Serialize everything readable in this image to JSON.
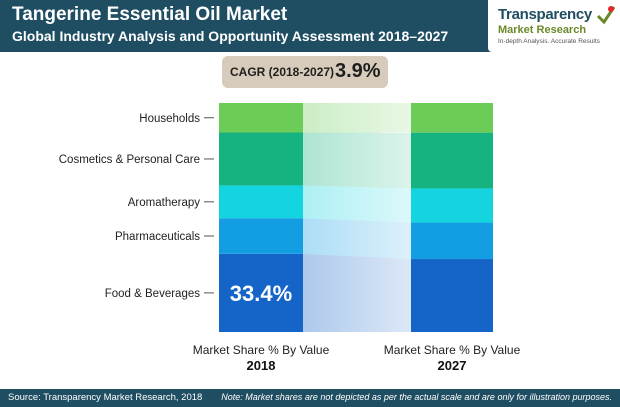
{
  "header": {
    "title": "Tangerine Essential Oil Market",
    "subtitle": "Global  Industry Analysis and Opportunity Assessment 2018–2027"
  },
  "logo": {
    "main": "Transparency",
    "sub": "Market Research",
    "tagline": "In-depth Analysis. Accurate Results"
  },
  "cagr": {
    "label": "CAGR (2018-2027)",
    "value": "3.9%"
  },
  "chart_data": {
    "type": "bar",
    "stacked": true,
    "categories": [
      "2018",
      "2027"
    ],
    "x_labels": [
      {
        "line1": "Market Share % By Value",
        "line2": "2018"
      },
      {
        "line1": "Market Share % By Value",
        "line2": "2027"
      }
    ],
    "series": [
      {
        "name": "Food & Beverages",
        "values": [
          33.4,
          31.0
        ],
        "color": "#1565c8"
      },
      {
        "name": "Pharmaceuticals",
        "values": [
          15.2,
          15.5
        ],
        "color": "#139ee3"
      },
      {
        "name": "Aromatherapy",
        "values": [
          14.0,
          14.5
        ],
        "color": "#14d4e0"
      },
      {
        "name": "Cosmetics & Personal Care",
        "values": [
          22.6,
          23.7
        ],
        "color": "#16b27f"
      },
      {
        "name": "Households",
        "values": [
          12.6,
          12.6
        ],
        "color": "#6ccc58"
      }
    ],
    "data_labels": [
      {
        "series": "Food & Beverages",
        "category": "2018",
        "text": "33.4%"
      }
    ],
    "ylim": [
      0,
      100
    ]
  },
  "footer": {
    "source": "Source: Transparency Market Research, 2018",
    "note": "Note: Market shares are not depicted as per the actual scale and are only for illustration purposes."
  }
}
